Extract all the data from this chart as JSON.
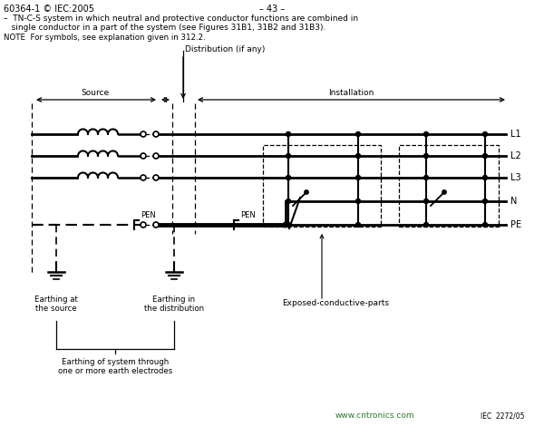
{
  "title_left": "60364-1 © IEC:2005",
  "title_center": "– 43 –",
  "desc_line1": "–  TN-C-S system in which neutral and protective conductor functions are combined in",
  "desc_line2": "   single conductor in a part of the system (see Figures 31B1, 31B2 and 31B3).",
  "note": "NOTE  For symbols, see explanation given in 312.2.",
  "label_distribution": "Distribution (if any)",
  "label_source": "Source",
  "label_installation": "Installation",
  "label_PEN1": "PEN",
  "label_PEN2": "PEN",
  "label_L1": "L1",
  "label_L2": "L2",
  "label_L3": "L3",
  "label_N": "N",
  "label_PE": "PE",
  "label_earth_source": "Earthing at\nthe source",
  "label_earth_dist": "Earthing in\nthe distribution",
  "label_exposed": "Exposed-conductive-parts",
  "label_earth_system": "Earthing of system through\none or more earth electrodes",
  "watermark": "www.cntronics.com",
  "label_iec": "IEC  2272/05",
  "bg_color": "#ffffff",
  "line_color": "#000000",
  "text_color": "#000000",
  "green_color": "#2d7a2d"
}
